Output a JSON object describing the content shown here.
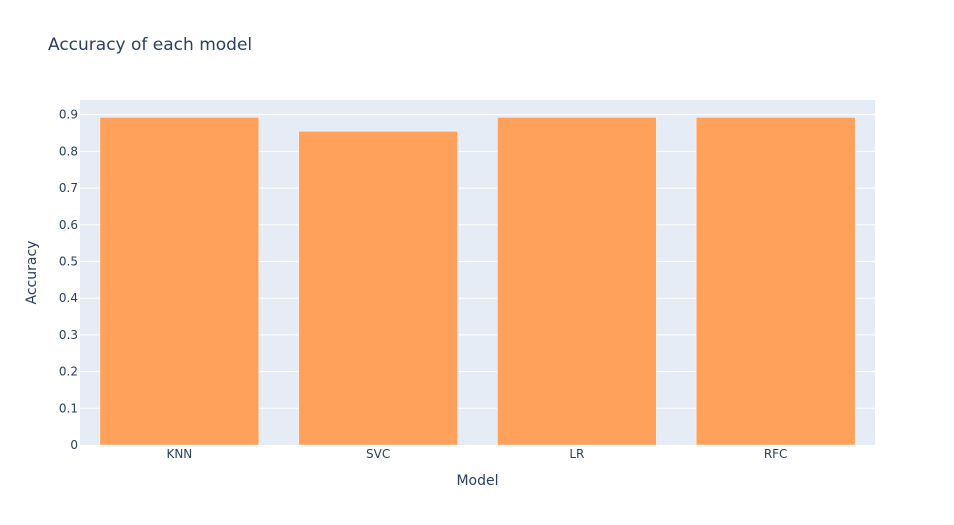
{
  "chart_data": {
    "type": "bar",
    "title": "Accuracy of each model",
    "xlabel": "Model",
    "ylabel": "Accuracy",
    "categories": [
      "KNN",
      "SVC",
      "LR",
      "RFC"
    ],
    "values": [
      0.893,
      0.855,
      0.893,
      0.893
    ],
    "ylim": [
      0,
      0.94
    ],
    "yticks": [
      0,
      0.1,
      0.2,
      0.3,
      0.4,
      0.5,
      0.6,
      0.7,
      0.8,
      0.9
    ],
    "ytick_labels": [
      "0",
      "0.1",
      "0.2",
      "0.3",
      "0.4",
      "0.5",
      "0.6",
      "0.7",
      "0.8",
      "0.9"
    ],
    "grid": true,
    "legend": false,
    "colors": {
      "bar": "#ffa15a",
      "plot_background": "#e5ecf6",
      "gridline": "#ffffff",
      "text": "#2a3f5f"
    }
  }
}
